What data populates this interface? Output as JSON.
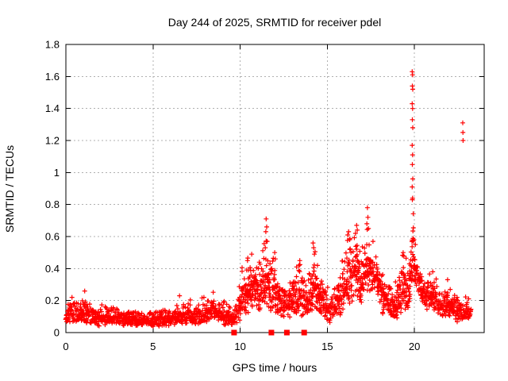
{
  "chart_data": {
    "type": "scatter",
    "title": "Day 244 of 2025, SRMTID for receiver pdel",
    "xlabel": "GPS time / hours",
    "ylabel": "SRMTID / TECUs",
    "xlim": [
      0,
      24
    ],
    "ylim": [
      0,
      1.8
    ],
    "xticks": [
      [
        0,
        "0"
      ],
      [
        5,
        "5"
      ],
      [
        10,
        "10"
      ],
      [
        15,
        "15"
      ],
      [
        20,
        "20"
      ]
    ],
    "yticks": [
      [
        0,
        "0"
      ],
      [
        0.2,
        "0.2"
      ],
      [
        0.4,
        "0.4"
      ],
      [
        0.6,
        "0.6"
      ],
      [
        0.8,
        "0.8"
      ],
      [
        1,
        "1"
      ],
      [
        1.2,
        "1.2"
      ],
      [
        1.4,
        "1.4"
      ],
      [
        1.6,
        "1.6"
      ],
      [
        1.8,
        "1.8"
      ]
    ],
    "grid": {
      "show": true,
      "color": "#b0b0b0",
      "dash": "2 3"
    },
    "legend": "none",
    "colors": {
      "points": "#ff0000",
      "text": "#000000",
      "border": "#000000",
      "background": "#ffffff"
    },
    "series": [
      {
        "name": "srmtid-values",
        "marker": "plus",
        "marker_size": 7,
        "color": "#ff0000",
        "band_envelope_comment": "dense scatter band described as [hour, min_TECU, max_TECU] control points",
        "band_envelope": [
          [
            0.0,
            0.07,
            0.2
          ],
          [
            0.3,
            0.06,
            0.22
          ],
          [
            0.7,
            0.05,
            0.2
          ],
          [
            1.0,
            0.06,
            0.23
          ],
          [
            1.4,
            0.05,
            0.19
          ],
          [
            1.8,
            0.04,
            0.16
          ],
          [
            2.3,
            0.05,
            0.17
          ],
          [
            2.8,
            0.05,
            0.18
          ],
          [
            3.2,
            0.04,
            0.17
          ],
          [
            3.7,
            0.04,
            0.15
          ],
          [
            4.2,
            0.04,
            0.14
          ],
          [
            4.7,
            0.04,
            0.14
          ],
          [
            5.2,
            0.04,
            0.15
          ],
          [
            5.7,
            0.04,
            0.15
          ],
          [
            6.2,
            0.05,
            0.16
          ],
          [
            6.6,
            0.05,
            0.18
          ],
          [
            7.0,
            0.05,
            0.19
          ],
          [
            7.5,
            0.04,
            0.18
          ],
          [
            8.0,
            0.06,
            0.2
          ],
          [
            8.4,
            0.08,
            0.24
          ],
          [
            8.8,
            0.07,
            0.2
          ],
          [
            9.2,
            0.04,
            0.16
          ],
          [
            9.55,
            0.03,
            0.13
          ],
          [
            9.85,
            0.05,
            0.22
          ],
          [
            10.15,
            0.1,
            0.4
          ],
          [
            10.4,
            0.12,
            0.46
          ],
          [
            10.7,
            0.14,
            0.48
          ],
          [
            10.95,
            0.12,
            0.42
          ],
          [
            11.2,
            0.12,
            0.42
          ],
          [
            11.45,
            0.15,
            0.58
          ],
          [
            11.6,
            0.14,
            0.52
          ],
          [
            11.85,
            0.12,
            0.44
          ],
          [
            12.0,
            0.12,
            0.5
          ],
          [
            12.25,
            0.09,
            0.33
          ],
          [
            12.6,
            0.09,
            0.3
          ],
          [
            12.9,
            0.1,
            0.33
          ],
          [
            13.2,
            0.1,
            0.38
          ],
          [
            13.45,
            0.1,
            0.44
          ],
          [
            13.7,
            0.08,
            0.32
          ],
          [
            14.0,
            0.1,
            0.35
          ],
          [
            14.25,
            0.13,
            0.5
          ],
          [
            14.5,
            0.12,
            0.42
          ],
          [
            14.8,
            0.1,
            0.32
          ],
          [
            15.1,
            0.06,
            0.26
          ],
          [
            15.4,
            0.08,
            0.3
          ],
          [
            15.7,
            0.1,
            0.36
          ],
          [
            16.0,
            0.14,
            0.5
          ],
          [
            16.2,
            0.18,
            0.58
          ],
          [
            16.45,
            0.16,
            0.55
          ],
          [
            16.7,
            0.22,
            0.6
          ],
          [
            16.95,
            0.18,
            0.5
          ],
          [
            17.2,
            0.22,
            0.62
          ],
          [
            17.35,
            0.25,
            0.7
          ],
          [
            17.6,
            0.2,
            0.55
          ],
          [
            17.85,
            0.24,
            0.46
          ],
          [
            18.1,
            0.12,
            0.42
          ],
          [
            18.5,
            0.1,
            0.32
          ],
          [
            18.9,
            0.07,
            0.3
          ],
          [
            19.2,
            0.12,
            0.45
          ],
          [
            19.4,
            0.14,
            0.5
          ],
          [
            19.65,
            0.1,
            0.4
          ],
          [
            19.8,
            0.25,
            0.65
          ],
          [
            19.9,
            0.3,
            0.8
          ],
          [
            20.0,
            0.3,
            0.58
          ],
          [
            20.15,
            0.25,
            0.5
          ],
          [
            20.35,
            0.18,
            0.38
          ],
          [
            20.6,
            0.15,
            0.32
          ],
          [
            20.85,
            0.14,
            0.34
          ],
          [
            21.1,
            0.13,
            0.38
          ],
          [
            21.35,
            0.1,
            0.28
          ],
          [
            21.6,
            0.1,
            0.26
          ],
          [
            21.9,
            0.1,
            0.33
          ],
          [
            22.2,
            0.08,
            0.26
          ],
          [
            22.5,
            0.05,
            0.24
          ],
          [
            22.75,
            0.03,
            0.2
          ],
          [
            23.0,
            0.08,
            0.2
          ],
          [
            23.25,
            0.1,
            0.18
          ]
        ],
        "feature_points_comment": "distinct visible points/peaks as [hour, TECU]",
        "feature_points": [
          [
            0.35,
            0.22
          ],
          [
            1.08,
            0.26
          ],
          [
            6.52,
            0.23
          ],
          [
            7.92,
            0.22
          ],
          [
            10.42,
            0.45
          ],
          [
            10.66,
            0.49
          ],
          [
            11.49,
            0.71
          ],
          [
            11.52,
            0.66
          ],
          [
            11.47,
            0.63
          ],
          [
            11.55,
            0.57
          ],
          [
            11.44,
            0.53
          ],
          [
            11.98,
            0.5
          ],
          [
            12.02,
            0.46
          ],
          [
            13.42,
            0.45
          ],
          [
            13.38,
            0.42
          ],
          [
            14.18,
            0.56
          ],
          [
            14.22,
            0.53
          ],
          [
            14.26,
            0.49
          ],
          [
            16.17,
            0.61
          ],
          [
            16.22,
            0.63
          ],
          [
            16.28,
            0.58
          ],
          [
            16.62,
            0.62
          ],
          [
            16.68,
            0.67
          ],
          [
            16.72,
            0.64
          ],
          [
            17.27,
            0.68
          ],
          [
            17.3,
            0.78
          ],
          [
            17.33,
            0.72
          ],
          [
            17.36,
            0.65
          ],
          [
            17.62,
            0.57
          ],
          [
            19.35,
            0.5
          ],
          [
            19.87,
            1.63
          ],
          [
            19.89,
            1.61
          ],
          [
            19.88,
            1.54
          ],
          [
            19.9,
            1.52
          ],
          [
            19.87,
            1.43
          ],
          [
            19.89,
            1.4
          ],
          [
            19.88,
            1.33
          ],
          [
            19.9,
            1.28
          ],
          [
            19.87,
            1.17
          ],
          [
            19.89,
            1.11
          ],
          [
            19.88,
            1.05
          ],
          [
            19.9,
            0.96
          ],
          [
            19.87,
            0.91
          ],
          [
            19.89,
            0.84
          ],
          [
            19.88,
            0.83
          ],
          [
            19.97,
            0.58
          ],
          [
            20.05,
            0.55
          ],
          [
            21.05,
            0.38
          ],
          [
            21.9,
            0.33
          ],
          [
            22.77,
            1.31
          ],
          [
            22.78,
            1.25
          ],
          [
            22.79,
            1.2
          ]
        ]
      },
      {
        "name": "flag-squares-at-zero",
        "marker": "filled-square",
        "marker_size": 7,
        "color": "#ff0000",
        "x": [
          9.65,
          11.79,
          12.68,
          13.67
        ],
        "y": 0
      }
    ]
  }
}
